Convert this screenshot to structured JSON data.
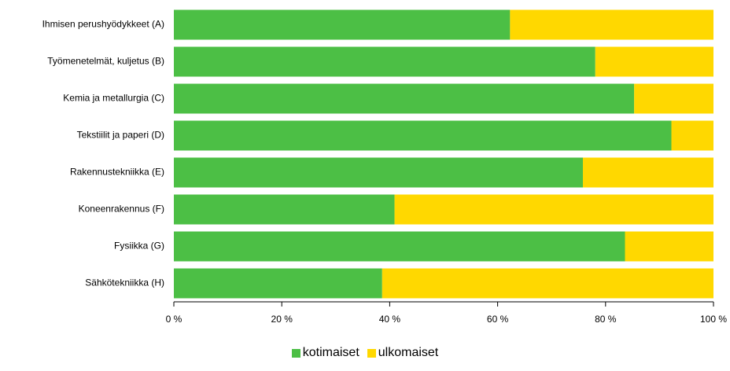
{
  "chart_data": {
    "type": "bar",
    "orientation": "horizontal",
    "stacked": true,
    "categories": [
      "Ihmisen perushyödykkeet (A)",
      "Työmenetelmät, kuljetus (B)",
      "Kemia ja metallurgia (C)",
      "Tekstiilit ja paperi (D)",
      "Rakennustekniikka (E)",
      "Koneenrakennus (F)",
      "Fysiikka (G)",
      "Sähkötekniikka (H)"
    ],
    "series": [
      {
        "name": "kotimaiset",
        "color": "#4cbf45",
        "values": [
          62.3,
          78.1,
          85.3,
          92.2,
          75.8,
          40.9,
          83.6,
          38.6
        ]
      },
      {
        "name": "ulkomaiset",
        "color": "#ffd800",
        "values": [
          37.7,
          21.9,
          14.7,
          7.8,
          24.2,
          59.1,
          16.4,
          61.4
        ]
      }
    ],
    "x_ticks": [
      "0 %",
      "20 %",
      "40 %",
      "60 %",
      "80 %",
      "100 %"
    ],
    "xlim": [
      0,
      100
    ],
    "grid": false,
    "legend": "bottom-center"
  }
}
